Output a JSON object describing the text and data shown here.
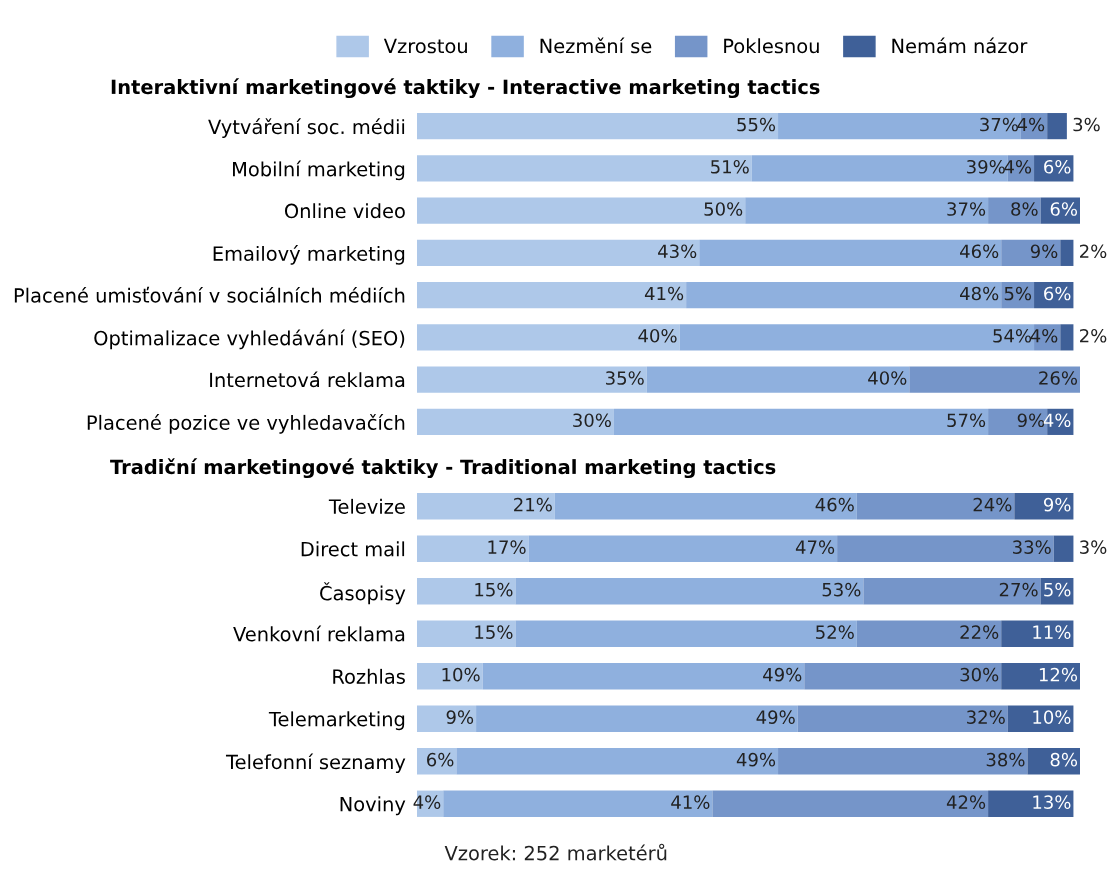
{
  "chart_data": [
    {
      "type": "bar",
      "orientation": "horizontal",
      "stacked": true,
      "legend": "top",
      "tick_labels": "y",
      "grid": false,
      "title": "Interaktivní marketingové taktiky - Interactive marketing tactics",
      "categories": [
        "Vytváření soc. médii",
        "Mobilní marketing",
        "Online video",
        "Emailový marketing",
        "Placené umisťování v sociálních médiích",
        "Optimalizace vyhledávání (SEO)",
        "Internetová reklama",
        "Placené pozice ve vyhledavačích"
      ],
      "series": [
        {
          "name": "Vzrostou",
          "color": "#aec8e9",
          "values": [
            55,
            51,
            50,
            43,
            41,
            40,
            35,
            30
          ],
          "value_labels": [
            "55%",
            "51%",
            "50%",
            "43%",
            "41%",
            "40%",
            "35%",
            "30%"
          ]
        },
        {
          "name": "Nezmění se",
          "color": "#8fb0de",
          "values": [
            37,
            39,
            37,
            46,
            48,
            54,
            40,
            57
          ],
          "value_labels": [
            "37%",
            "39%",
            "37%",
            "46%",
            "48%",
            "54%",
            "40%",
            "57%"
          ]
        },
        {
          "name": "Poklesnou",
          "color": "#7595c9",
          "values": [
            4,
            4,
            8,
            9,
            5,
            4,
            26,
            9
          ],
          "value_labels": [
            "4%",
            "4%",
            "8%",
            "9%",
            "5%",
            "4%",
            "26%",
            "9%"
          ]
        },
        {
          "name": "Nemám názor",
          "color": "#3f6098",
          "values": [
            3,
            6,
            6,
            2,
            6,
            2,
            null,
            4
          ],
          "value_labels": [
            "3%",
            "6%",
            "6%",
            "2%",
            "6%",
            "2%",
            null,
            "4%"
          ]
        }
      ]
    },
    {
      "type": "bar",
      "orientation": "horizontal",
      "stacked": true,
      "tick_labels": "y",
      "grid": false,
      "title": "Tradiční marketingové taktiky - Traditional marketing tactics",
      "categories": [
        "Televize",
        "Direct mail",
        "Časopisy",
        "Venkovní reklama",
        "Rozhlas",
        "Telemarketing",
        "Telefonní seznamy",
        "Noviny"
      ],
      "series": [
        {
          "color": "#aec8e9",
          "values": [
            21,
            17,
            15,
            15,
            10,
            9,
            6,
            4
          ],
          "value_labels": [
            "21%",
            "17%",
            "15%",
            "15%",
            "10%",
            "9%",
            "6%",
            "4%"
          ]
        },
        {
          "color": "#8fb0de",
          "values": [
            46,
            47,
            53,
            52,
            49,
            49,
            49,
            41
          ],
          "value_labels": [
            "46%",
            "47%",
            "53%",
            "52%",
            "49%",
            "49%",
            "49%",
            "41%"
          ]
        },
        {
          "color": "#7595c9",
          "values": [
            24,
            33,
            27,
            22,
            30,
            32,
            38,
            42
          ],
          "value_labels": [
            "24%",
            "33%",
            "27%",
            "22%",
            "30%",
            "32%",
            "38%",
            "42%"
          ]
        },
        {
          "color": "#3f6098",
          "values": [
            9,
            3,
            5,
            11,
            12,
            10,
            8,
            13
          ],
          "value_labels": [
            "9%",
            "3%",
            "5%",
            "11%",
            "12%",
            "10%",
            "8%",
            "13%"
          ]
        }
      ],
      "annotations": [
        "Vzorek: 252 marketérů"
      ]
    }
  ]
}
